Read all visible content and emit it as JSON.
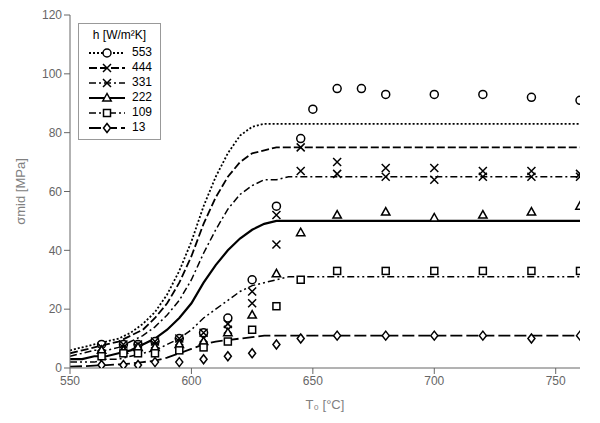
{
  "chart_data": {
    "type": "line",
    "x_label": "T₀ [°C]",
    "y_label": "σmid [MPa]",
    "legend_title": "h [W/m²K]",
    "legend": "upper left",
    "grid": false,
    "color": "#000000",
    "xlim": [
      550,
      760
    ],
    "ylim": [
      0,
      120
    ],
    "xticks": [
      550,
      600,
      650,
      700,
      750
    ],
    "yticks": [
      0,
      20,
      40,
      60,
      80,
      100,
      120
    ],
    "series": [
      {
        "name": "553",
        "marker": "circle",
        "line_style": "dotted",
        "points": {
          "x": [
            563,
            572,
            578,
            585,
            595,
            605,
            615,
            625,
            635,
            645,
            650,
            660,
            670,
            680,
            700,
            720,
            740,
            760
          ],
          "values": [
            8,
            8,
            8,
            9,
            10,
            12,
            17,
            30,
            55,
            78,
            88,
            95,
            95,
            93,
            93,
            93,
            92,
            91
          ]
        },
        "line": {
          "x": [
            550,
            555,
            560,
            565,
            570,
            575,
            580,
            585,
            590,
            595,
            600,
            605,
            610,
            615,
            620,
            625,
            630,
            635,
            640,
            645,
            650,
            660,
            670,
            700,
            760
          ],
          "values": [
            6,
            7,
            8,
            9,
            10,
            12,
            15,
            19,
            25,
            33,
            43,
            55,
            65,
            73,
            79,
            82,
            83,
            83,
            83,
            83,
            83,
            83,
            83,
            83,
            83
          ]
        }
      },
      {
        "name": "444",
        "marker": "x",
        "line_style": "dashed",
        "points": {
          "x": [
            563,
            572,
            578,
            585,
            595,
            605,
            615,
            625,
            635,
            645,
            660,
            680,
            700,
            720,
            740,
            760
          ],
          "values": [
            7,
            8,
            8,
            9,
            10,
            12,
            15,
            26,
            52,
            75,
            70,
            68,
            68,
            67,
            67,
            66
          ]
        },
        "line": {
          "x": [
            550,
            555,
            560,
            565,
            570,
            575,
            580,
            585,
            590,
            595,
            600,
            605,
            610,
            615,
            620,
            625,
            630,
            635,
            640,
            645,
            650,
            660,
            670,
            700,
            760
          ],
          "values": [
            5,
            6,
            7,
            8,
            9,
            11,
            13,
            17,
            22,
            29,
            38,
            49,
            58,
            65,
            70,
            73,
            74,
            75,
            75,
            75,
            75,
            75,
            75,
            75,
            75
          ]
        }
      },
      {
        "name": "331",
        "marker": "x",
        "line_style": "dashdot",
        "points": {
          "x": [
            563,
            572,
            578,
            585,
            595,
            605,
            615,
            625,
            635,
            645,
            660,
            680,
            700,
            720,
            740,
            760
          ],
          "values": [
            7,
            7,
            7,
            8,
            9,
            10,
            13,
            22,
            42,
            67,
            66,
            65,
            64,
            65,
            65,
            65
          ]
        },
        "line": {
          "x": [
            550,
            555,
            560,
            565,
            570,
            575,
            580,
            585,
            590,
            595,
            600,
            605,
            610,
            615,
            620,
            625,
            630,
            635,
            640,
            645,
            650,
            660,
            670,
            700,
            760
          ],
          "values": [
            4,
            5,
            6,
            6,
            7,
            9,
            11,
            14,
            18,
            23,
            30,
            39,
            47,
            54,
            59,
            62,
            64,
            64,
            65,
            65,
            65,
            65,
            65,
            65,
            65
          ]
        }
      },
      {
        "name": "222",
        "marker": "triangle",
        "line_style": "solid",
        "points": {
          "x": [
            563,
            572,
            578,
            585,
            595,
            605,
            615,
            625,
            635,
            645,
            660,
            680,
            700,
            720,
            740,
            760
          ],
          "values": [
            6,
            6,
            7,
            7,
            8,
            9,
            12,
            18,
            32,
            46,
            52,
            53,
            51,
            52,
            53,
            55
          ]
        },
        "line": {
          "x": [
            550,
            555,
            560,
            565,
            570,
            575,
            580,
            585,
            590,
            595,
            600,
            605,
            610,
            615,
            620,
            625,
            630,
            635,
            640,
            645,
            650,
            660,
            670,
            700,
            760
          ],
          "values": [
            3,
            3,
            4,
            4,
            5,
            6,
            8,
            10,
            13,
            17,
            22,
            29,
            35,
            40,
            44,
            47,
            49,
            50,
            50,
            50,
            50,
            50,
            50,
            50,
            50
          ]
        }
      },
      {
        "name": "109",
        "marker": "square",
        "line_style": "dashdotdot",
        "points": {
          "x": [
            563,
            572,
            578,
            585,
            595,
            605,
            615,
            625,
            635,
            645,
            660,
            680,
            700,
            720,
            740,
            760
          ],
          "values": [
            4,
            5,
            5,
            5,
            6,
            7,
            9,
            13,
            21,
            30,
            33,
            33,
            33,
            33,
            33,
            33
          ]
        },
        "line": {
          "x": [
            550,
            555,
            560,
            565,
            570,
            575,
            580,
            585,
            590,
            595,
            600,
            605,
            610,
            615,
            620,
            625,
            630,
            635,
            640,
            645,
            650,
            660,
            670,
            700,
            760
          ],
          "values": [
            2,
            2,
            2,
            3,
            3,
            4,
            5,
            6,
            8,
            10,
            13,
            17,
            20,
            23,
            26,
            28,
            29,
            30,
            31,
            31,
            31,
            31,
            31,
            31,
            31
          ]
        }
      },
      {
        "name": "13",
        "marker": "diamond",
        "line_style": "longdash",
        "points": {
          "x": [
            563,
            572,
            578,
            585,
            595,
            605,
            615,
            625,
            635,
            645,
            660,
            680,
            700,
            720,
            740,
            760
          ],
          "values": [
            1,
            1,
            1,
            2,
            2,
            3,
            4,
            5,
            8,
            10,
            11,
            11,
            11,
            11,
            10,
            11
          ]
        },
        "line": {
          "x": [
            550,
            555,
            560,
            565,
            570,
            575,
            580,
            585,
            590,
            595,
            600,
            605,
            610,
            615,
            620,
            625,
            630,
            635,
            640,
            645,
            650,
            660,
            670,
            700,
            760
          ],
          "values": [
            0.5,
            0.6,
            0.8,
            1.0,
            1.2,
            1.5,
            2,
            2.5,
            3.5,
            5,
            6.5,
            8,
            9,
            9.5,
            10,
            10.5,
            11,
            11,
            11,
            11,
            11,
            11,
            11,
            11,
            11
          ]
        }
      }
    ]
  }
}
